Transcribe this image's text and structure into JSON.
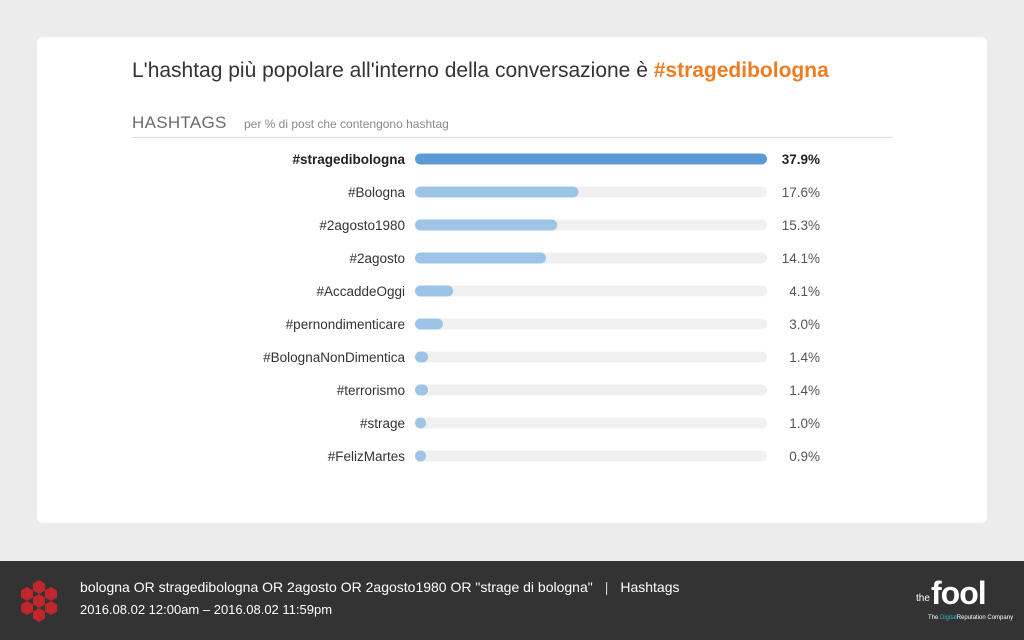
{
  "headline": {
    "text": "L'hashtag più popolare all'interno della conversazione è ",
    "accent": "#stragedibologna"
  },
  "section": {
    "title": "HASHTAGS",
    "subtitle": "per % di post che contengono hashtag"
  },
  "colors": {
    "accent": "#f07c22",
    "bar_primary": "#5b9bd5",
    "bar_secondary": "#9dc3e6",
    "track": "#f0f0f0",
    "footer_bg": "#333333",
    "logo_red": "#c0272d"
  },
  "chart_data": {
    "type": "bar",
    "orientation": "horizontal",
    "title": "HASHTAGS",
    "subtitle": "per % di post che contengono hashtag",
    "xlim": [
      0,
      37.9
    ],
    "categories": [
      "#stragedibologna",
      "#Bologna",
      "#2agosto1980",
      "#2agosto",
      "#AccaddeOggi",
      "#pernondimenticare",
      "#BolognaNonDimentica",
      "#terrorismo",
      "#strage",
      "#FelizMartes"
    ],
    "values": [
      37.9,
      17.6,
      15.3,
      14.1,
      4.1,
      3.0,
      1.4,
      1.4,
      1.0,
      0.9
    ],
    "value_labels": [
      "37.9%",
      "17.6%",
      "15.3%",
      "14.1%",
      "4.1%",
      "3.0%",
      "1.4%",
      "1.4%",
      "1.0%",
      "0.9%"
    ],
    "highlighted_index": 0
  },
  "footer": {
    "query": "bologna OR stragedibologna OR 2agosto OR 2agosto1980 OR \"strage di bologna\"",
    "separator": "|",
    "view": "Hashtags",
    "date_range": "2016.08.02 12:00am – 2016.08.02 11:59pm",
    "logo_icon": "hexagon-cluster-icon"
  },
  "brand": {
    "the": "the",
    "name": "fool",
    "tagline_pre": "The ",
    "tagline_highlight": "Digital",
    "tagline_post": "Reputation Company"
  }
}
